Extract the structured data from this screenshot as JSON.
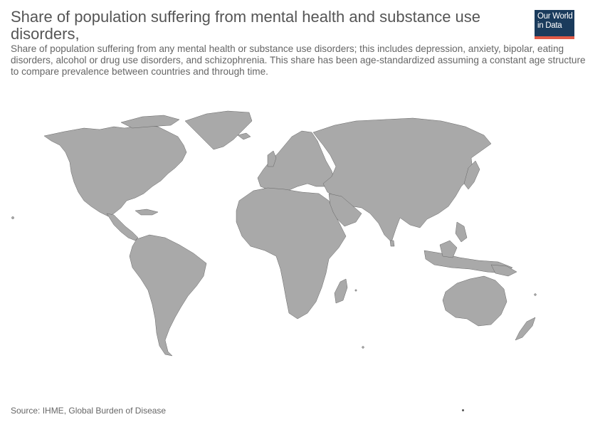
{
  "header": {
    "title": "Share of population suffering from mental health and substance use disorders,",
    "subtitle": "Share of population suffering from any mental health or substance use disorders; this includes depression, anxiety, bipolar, eating disorders, alcohol or drug use disorders, and schizophrenia. This share has been age-standardized assuming a constant age structure to compare prevalence between countries and through time."
  },
  "logo": {
    "line1": "Our World",
    "line2": "in Data"
  },
  "map": {
    "fill_color": "#a9a9a9",
    "border_color": "#666666",
    "data_shown": "none"
  },
  "footer": {
    "source": "Source: IHME, Global Burden of Disease"
  },
  "colors": {
    "logo_background": "#1a3b5c",
    "logo_accent": "#e05a47",
    "text": "#555555"
  }
}
